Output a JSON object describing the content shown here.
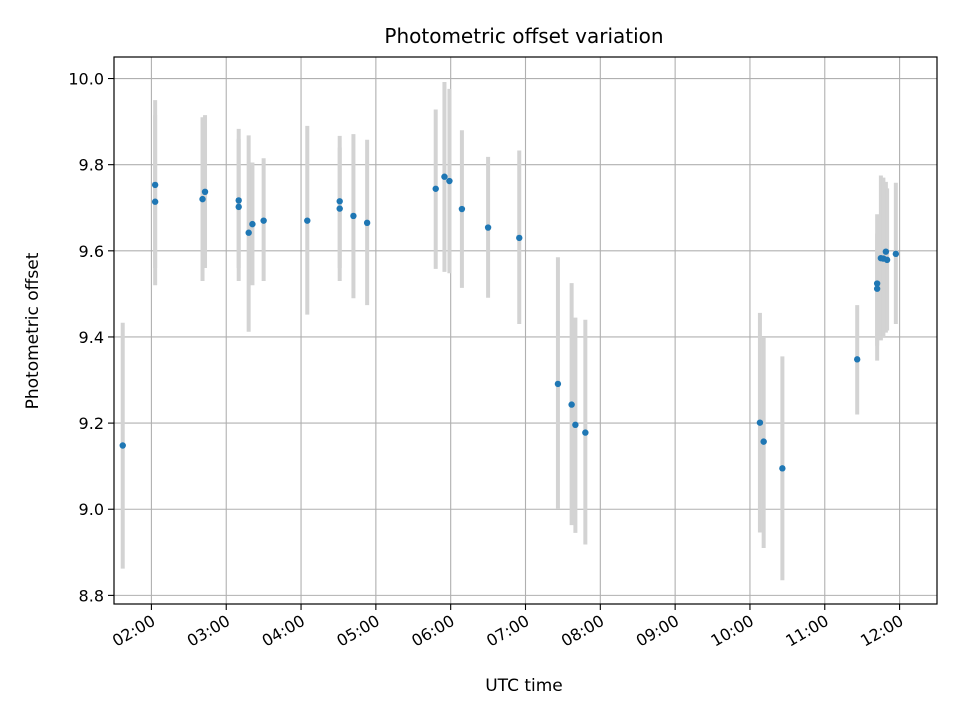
{
  "chart_data": {
    "type": "scatter",
    "title": "Photometric offset variation",
    "xlabel": "UTC time",
    "ylabel": "Photometric offset",
    "x_range_hours": [
      1.5,
      12.5
    ],
    "ylim": [
      8.78,
      10.05
    ],
    "y_ticks": [
      8.8,
      9.0,
      9.2,
      9.4,
      9.6,
      9.8,
      10.0
    ],
    "y_tick_labels": [
      "8.8",
      "9.0",
      "9.2",
      "9.4",
      "9.6",
      "9.8",
      "10.0"
    ],
    "x_ticks": [
      2,
      3,
      4,
      5,
      6,
      7,
      8,
      9,
      10,
      11,
      12
    ],
    "x_tick_labels": [
      "02:00",
      "03:00",
      "04:00",
      "05:00",
      "06:00",
      "07:00",
      "08:00",
      "09:00",
      "10:00",
      "11:00",
      "12:00"
    ],
    "grid": true,
    "point_color": "#1f77b4",
    "errorbar_color": "#d3d3d3",
    "points": [
      {
        "t": "01:37",
        "y": 9.148,
        "lo": 8.862,
        "hi": 9.433
      },
      {
        "t": "02:03",
        "y": 9.753,
        "lo": 9.52,
        "hi": 9.95
      },
      {
        "t": "02:03",
        "y": 9.714,
        "lo": 9.56,
        "hi": 9.915
      },
      {
        "t": "02:41",
        "y": 9.72,
        "lo": 9.53,
        "hi": 9.91
      },
      {
        "t": "02:43",
        "y": 9.737,
        "lo": 9.56,
        "hi": 9.915
      },
      {
        "t": "03:10",
        "y": 9.717,
        "lo": 9.53,
        "hi": 9.883
      },
      {
        "t": "03:10",
        "y": 9.702,
        "lo": 9.56,
        "hi": 9.86
      },
      {
        "t": "03:18",
        "y": 9.642,
        "lo": 9.412,
        "hi": 9.868
      },
      {
        "t": "03:21",
        "y": 9.662,
        "lo": 9.52,
        "hi": 9.805
      },
      {
        "t": "03:30",
        "y": 9.67,
        "lo": 9.53,
        "hi": 9.815
      },
      {
        "t": "04:05",
        "y": 9.67,
        "lo": 9.452,
        "hi": 9.89
      },
      {
        "t": "04:31",
        "y": 9.715,
        "lo": 9.53,
        "hi": 9.867
      },
      {
        "t": "04:31",
        "y": 9.698,
        "lo": 9.56,
        "hi": 9.84
      },
      {
        "t": "04:42",
        "y": 9.681,
        "lo": 9.49,
        "hi": 9.871
      },
      {
        "t": "04:53",
        "y": 9.665,
        "lo": 9.474,
        "hi": 9.858
      },
      {
        "t": "05:48",
        "y": 9.744,
        "lo": 9.558,
        "hi": 9.928
      },
      {
        "t": "05:55",
        "y": 9.772,
        "lo": 9.551,
        "hi": 9.992
      },
      {
        "t": "05:59",
        "y": 9.762,
        "lo": 9.548,
        "hi": 9.976
      },
      {
        "t": "06:09",
        "y": 9.697,
        "lo": 9.514,
        "hi": 9.88
      },
      {
        "t": "06:30",
        "y": 9.654,
        "lo": 9.491,
        "hi": 9.818
      },
      {
        "t": "06:55",
        "y": 9.63,
        "lo": 9.43,
        "hi": 9.833
      },
      {
        "t": "07:26",
        "y": 9.291,
        "lo": 9.001,
        "hi": 9.585
      },
      {
        "t": "07:37",
        "y": 9.243,
        "lo": 8.963,
        "hi": 9.525
      },
      {
        "t": "07:40",
        "y": 9.196,
        "lo": 8.945,
        "hi": 9.445
      },
      {
        "t": "07:48",
        "y": 9.178,
        "lo": 8.918,
        "hi": 9.44
      },
      {
        "t": "10:08",
        "y": 9.201,
        "lo": 8.946,
        "hi": 9.456
      },
      {
        "t": "10:11",
        "y": 9.157,
        "lo": 8.91,
        "hi": 9.4
      },
      {
        "t": "10:26",
        "y": 9.095,
        "lo": 8.835,
        "hi": 9.355
      },
      {
        "t": "11:26",
        "y": 9.348,
        "lo": 9.22,
        "hi": 9.474
      },
      {
        "t": "11:42",
        "y": 9.524,
        "lo": 9.345,
        "hi": 9.685
      },
      {
        "t": "11:42",
        "y": 9.512,
        "lo": 9.38,
        "hi": 9.64
      },
      {
        "t": "11:45",
        "y": 9.583,
        "lo": 9.392,
        "hi": 9.775
      },
      {
        "t": "11:47",
        "y": 9.582,
        "lo": 9.4,
        "hi": 9.77
      },
      {
        "t": "11:49",
        "y": 9.598,
        "lo": 9.41,
        "hi": 9.76
      },
      {
        "t": "11:50",
        "y": 9.579,
        "lo": 9.415,
        "hi": 9.745
      },
      {
        "t": "11:57",
        "y": 9.593,
        "lo": 9.43,
        "hi": 9.758
      }
    ]
  }
}
